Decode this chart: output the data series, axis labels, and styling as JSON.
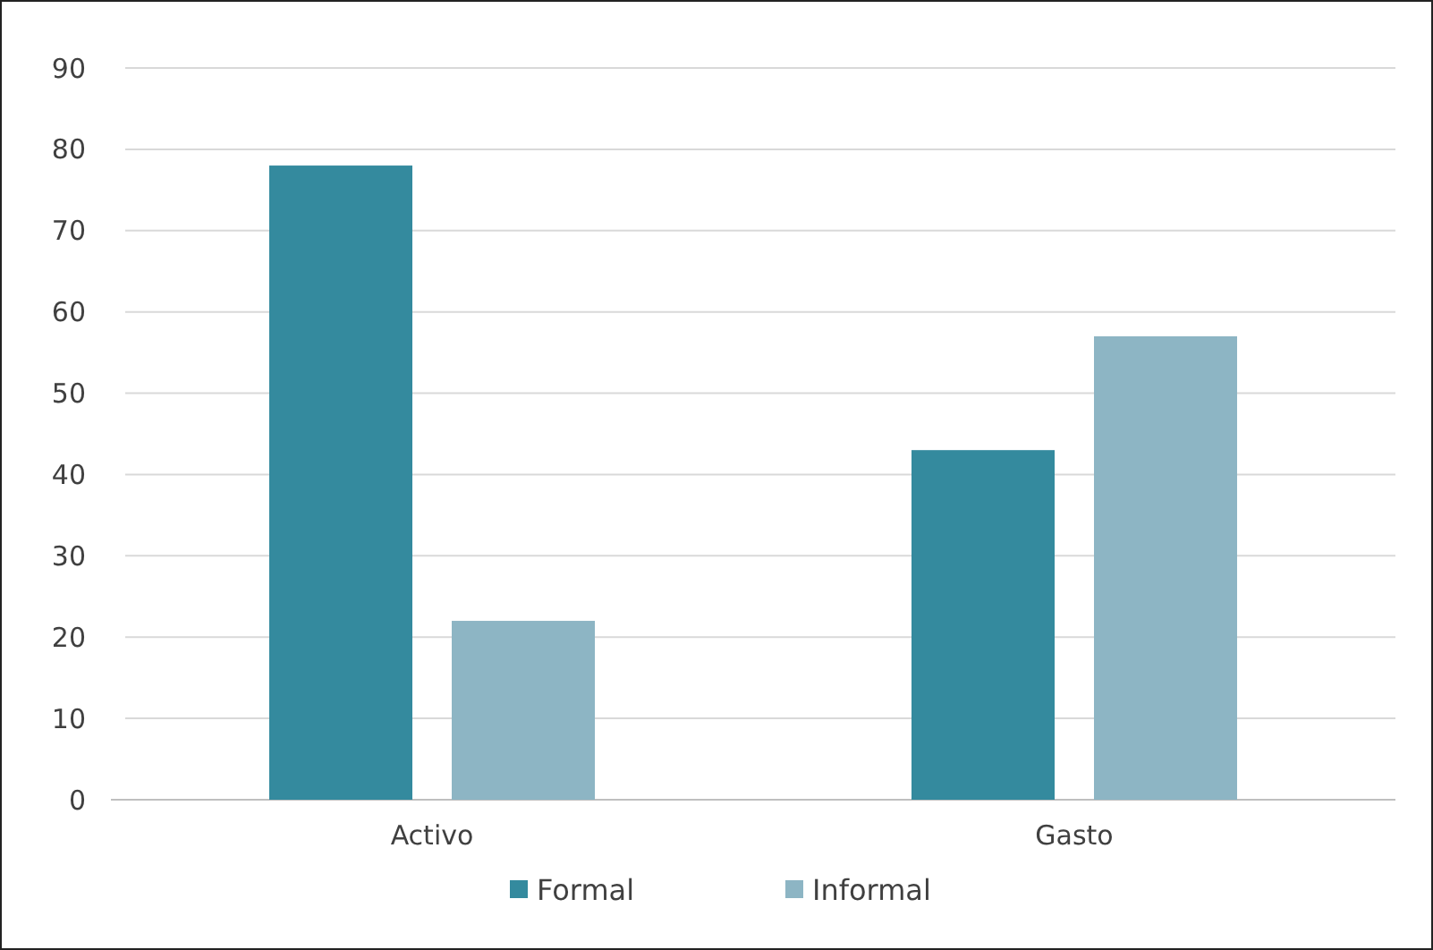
{
  "chart_data": {
    "type": "bar",
    "categories": [
      "Activo",
      "Gasto"
    ],
    "series": [
      {
        "name": "Formal",
        "color": "#348a9e",
        "values": [
          78,
          43
        ]
      },
      {
        "name": "Informal",
        "color": "#8db5c4",
        "values": [
          22,
          57
        ]
      }
    ],
    "ylim": [
      0,
      90
    ],
    "yticks": [
      0,
      10,
      20,
      30,
      40,
      50,
      60,
      70,
      80,
      90
    ],
    "grid": "y",
    "legend": "bottom"
  }
}
